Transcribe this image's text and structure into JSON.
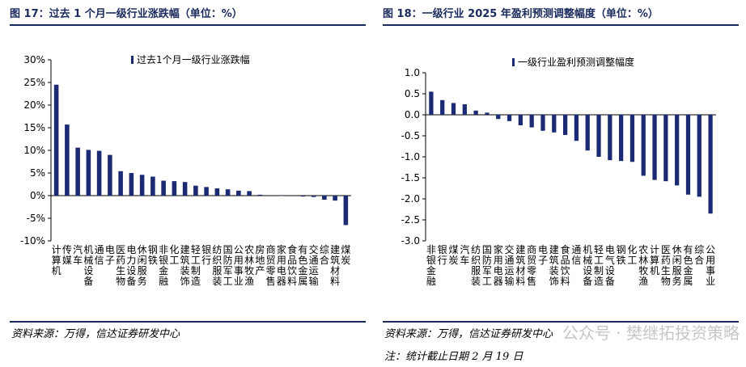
{
  "left": {
    "title": "图 17：过去 1 个月一级行业涨跌幅（单位：%）",
    "source": "资料来源：万得，信达证券研发中心"
  },
  "right": {
    "title": "图 18：一级行业 2025 年盈利预测调整幅度（单位：%）",
    "source": "资料来源：万得，信达证券研发中心",
    "note": "注：统计截止日期 2 月 19 日"
  },
  "watermark": "公众号 · 樊继拓投资策略",
  "colors": {
    "bar": "#1b2a73",
    "title": "#1a2a5c"
  },
  "chart_data": [
    {
      "type": "bar",
      "legend": "过去1个月一级行业涨跌幅",
      "legend_position": "top-right",
      "ylim": [
        -10,
        30
      ],
      "yticks": [
        "30%",
        "25%",
        "20%",
        "15%",
        "10%",
        "5%",
        "0%",
        "-5%",
        "-10%"
      ],
      "categories": [
        "计算机",
        "传媒",
        "汽车",
        "机械设备",
        "通信",
        "电子",
        "医药生物",
        "电力设备",
        "休闲服务",
        "钢铁",
        "非银金融",
        "化工",
        "建筑装饰",
        "轻工制造",
        "银行",
        "纺织服装",
        "国防军工",
        "公用事业",
        "农林牧渔",
        "房地产",
        "商贸零售",
        "家用电器",
        "食品饮料",
        "有色金属",
        "交通运输",
        "综合",
        "建筑材料",
        "煤炭"
      ],
      "values": [
        24.5,
        15.7,
        10.6,
        10.1,
        9.9,
        9.0,
        5.4,
        5.0,
        4.6,
        4.2,
        3.3,
        3.2,
        3.0,
        2.2,
        1.9,
        1.6,
        1.4,
        1.1,
        1.0,
        0.2,
        0.1,
        0.0,
        -0.1,
        -0.2,
        -0.3,
        -0.9,
        -1.1,
        -6.5
      ]
    },
    {
      "type": "bar",
      "legend": "一级行业盈利预测调整幅度",
      "legend_position": "top-right",
      "ylim": [
        -3,
        1
      ],
      "yticks": [
        "1.0",
        "0.5",
        "0.0",
        "-0.5",
        "-1.0",
        "-1.5",
        "-2.0",
        "-2.5",
        "-3.0"
      ],
      "categories": [
        "非银金融",
        "银行",
        "煤炭",
        "汽车",
        "纺织服装",
        "国防军工",
        "家用电器",
        "交通运输",
        "建筑材料",
        "商贸零售",
        "电子",
        "建筑装饰",
        "食品饮料",
        "通信",
        "机械设备",
        "轻工制造",
        "电气设备",
        "钢铁",
        "化工",
        "农林牧渔",
        "计算机",
        "医药生物",
        "休闲服务",
        "有色金属",
        "综合",
        "公用事业"
      ],
      "values": [
        0.55,
        0.35,
        0.28,
        0.25,
        0.1,
        0.05,
        -0.1,
        -0.15,
        -0.25,
        -0.3,
        -0.38,
        -0.42,
        -0.48,
        -0.62,
        -0.85,
        -1.0,
        -1.08,
        -1.1,
        -1.12,
        -1.45,
        -1.55,
        -1.58,
        -1.68,
        -1.9,
        -1.95,
        -2.35
      ]
    }
  ]
}
